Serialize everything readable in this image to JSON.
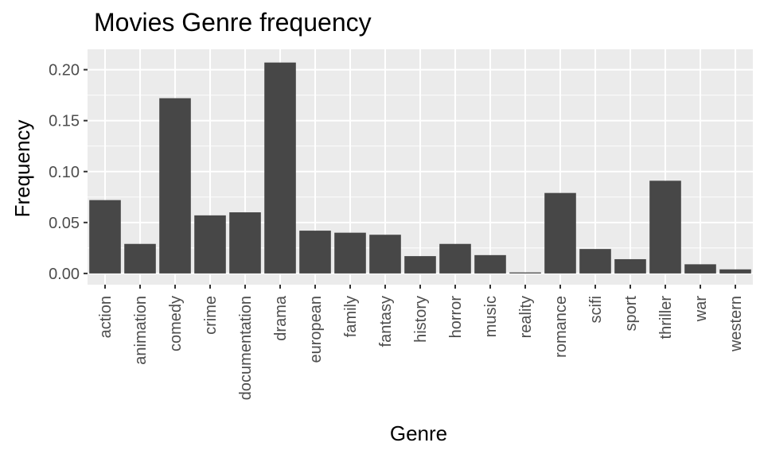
{
  "chart_data": {
    "type": "bar",
    "title": "Movies Genre frequency",
    "xlabel": "Genre",
    "ylabel": "Frequency",
    "categories": [
      "action",
      "animation",
      "comedy",
      "crime",
      "documentation",
      "drama",
      "european",
      "family",
      "fantasy",
      "history",
      "horror",
      "music",
      "reality",
      "romance",
      "scifi",
      "sport",
      "thriller",
      "war",
      "western"
    ],
    "values": [
      0.072,
      0.029,
      0.172,
      0.057,
      0.06,
      0.207,
      0.042,
      0.04,
      0.038,
      0.017,
      0.029,
      0.018,
      0.001,
      0.079,
      0.024,
      0.014,
      0.091,
      0.009,
      0.004
    ],
    "ylim": [
      -0.011,
      0.22
    ],
    "yticks": [
      0,
      0.05,
      0.1,
      0.15,
      0.2
    ],
    "ytick_labels": [
      "0.00",
      "0.05",
      "0.10",
      "0.15",
      "0.20"
    ],
    "grid": true,
    "colors": {
      "panel": "#ebebeb",
      "grid": "#ffffff",
      "bar": "#474747",
      "tick": "#333333",
      "tick_label": "#4d4d4d"
    }
  }
}
